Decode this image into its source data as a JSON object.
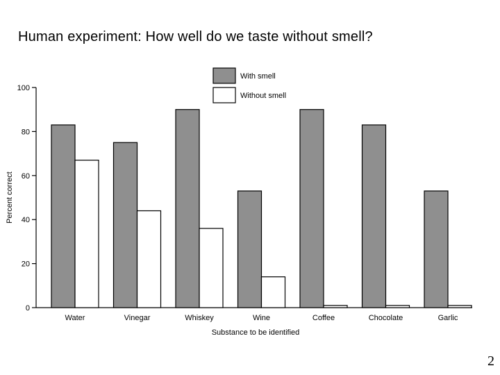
{
  "slide": {
    "title": "Human experiment: How well do we taste without smell?",
    "page_number": "2"
  },
  "colors": {
    "with_smell": "#8f8f8f",
    "without_smell": "#ffffff",
    "stroke": "#000000"
  },
  "chart_data": {
    "type": "bar",
    "title": "",
    "xlabel": "Substance to be identified",
    "ylabel": "Percent correct",
    "ylim": [
      0,
      100
    ],
    "yticks": [
      0,
      20,
      40,
      60,
      80,
      100
    ],
    "categories": [
      "Water",
      "Vinegar",
      "Whiskey",
      "Wine",
      "Coffee",
      "Chocolate",
      "Garlic"
    ],
    "series": [
      {
        "name": "With smell",
        "values": [
          83,
          75,
          90,
          53,
          90,
          83,
          53
        ]
      },
      {
        "name": "Without smell",
        "values": [
          67,
          44,
          36,
          14,
          1,
          1,
          1
        ]
      }
    ],
    "legend": "top-center",
    "grid": false
  }
}
